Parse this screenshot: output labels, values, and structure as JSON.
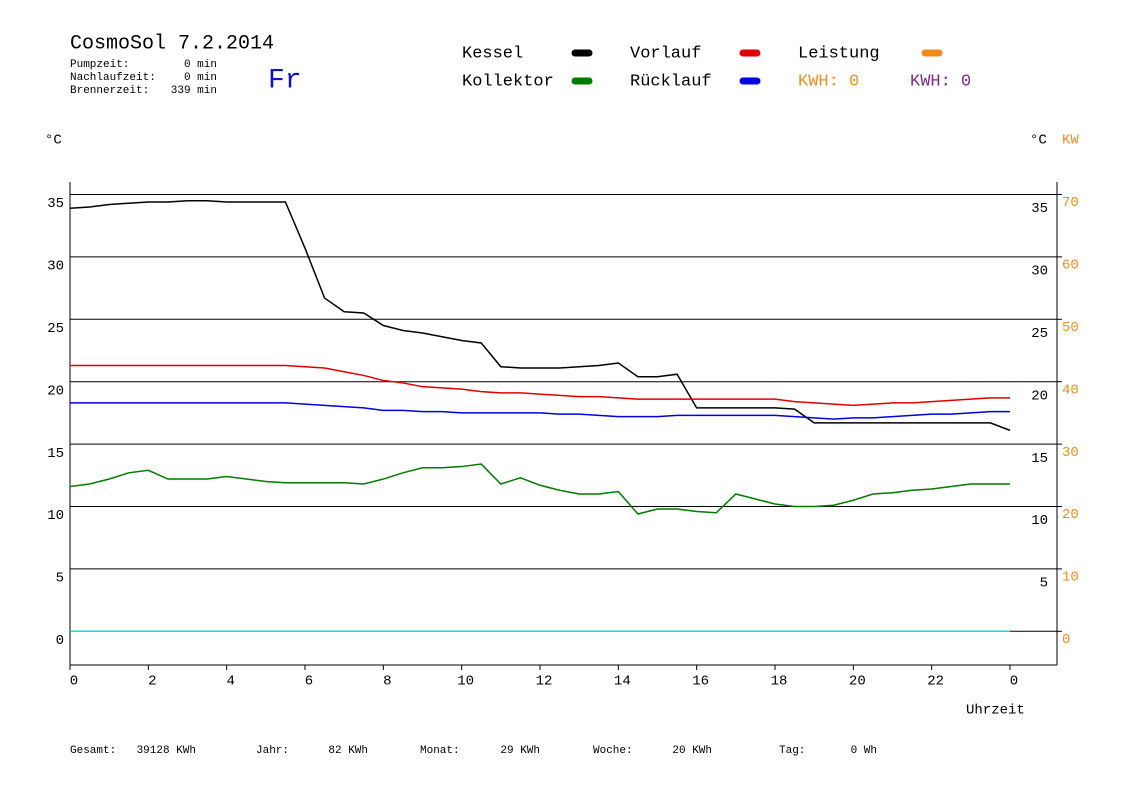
{
  "chart_data": {
    "type": "line",
    "title": "CosmoSol 7.2.2014",
    "day": "Fr",
    "info": [
      {
        "label": "Pumpzeit:",
        "value": "0 min"
      },
      {
        "label": "Nachlaufzeit:",
        "value": "0 min"
      },
      {
        "label": "Brennerzeit:",
        "value": "339 min"
      }
    ],
    "y_label": "°C",
    "y_right_label": "°C",
    "y2_label": "KW",
    "x_label": "Uhrzeit",
    "kwh_labels": [
      {
        "text": "KWH: 0",
        "color": "#e89020"
      },
      {
        "text": "KWH: 0",
        "color": "#7a2a8a"
      }
    ],
    "totals": [
      {
        "label": "Gesamt:",
        "value": "39128 KWh"
      },
      {
        "label": "Jahr:",
        "value": "82 KWh"
      },
      {
        "label": "Monat:",
        "value": "29 KWh"
      },
      {
        "label": "Woche:",
        "value": "20 KWh"
      },
      {
        "label": "Tag:",
        "value": "0 Wh"
      }
    ],
    "xlim": [
      0,
      25.2
    ],
    "xticks": [
      0,
      2,
      4,
      6,
      8,
      10,
      12,
      14,
      16,
      18,
      20,
      22,
      {
        "value": 24,
        "label": "0"
      }
    ],
    "ylim": [
      -2.7,
      36
    ],
    "yticks": [
      0,
      5,
      10,
      15,
      20,
      25,
      30,
      35
    ],
    "y2lim": [
      -5.4,
      72
    ],
    "y2ticks": [
      0,
      10,
      20,
      30,
      40,
      50,
      60,
      70
    ],
    "grid": true,
    "x": [
      0,
      0.5,
      1,
      1.5,
      2,
      2.5,
      3,
      3.5,
      4,
      4.5,
      5,
      5.5,
      6,
      6.5,
      7,
      7.5,
      8,
      8.5,
      9,
      9.5,
      10,
      10.5,
      11,
      11.5,
      12,
      12.5,
      13,
      13.5,
      14,
      14.5,
      15,
      15.5,
      16,
      16.5,
      17,
      17.5,
      18,
      18.5,
      19,
      19.5,
      20,
      20.5,
      21,
      21.5,
      22,
      22.5,
      23,
      23.5,
      24
    ],
    "series": [
      {
        "name": "Kessel",
        "color": "#000000",
        "values": [
          33.9,
          34.0,
          34.2,
          34.3,
          34.4,
          34.4,
          34.5,
          34.5,
          34.4,
          34.4,
          34.4,
          34.4,
          30.7,
          26.7,
          25.6,
          25.5,
          24.5,
          24.1,
          23.9,
          23.6,
          23.3,
          23.1,
          21.2,
          21.1,
          21.1,
          21.1,
          21.2,
          21.3,
          21.5,
          20.4,
          20.4,
          20.6,
          17.9,
          17.9,
          17.9,
          17.9,
          17.9,
          17.8,
          16.7,
          16.7,
          16.7,
          16.7,
          16.7,
          16.7,
          16.7,
          16.7,
          16.7,
          16.7,
          16.1
        ]
      },
      {
        "name": "Kollektor",
        "color": "#007a00",
        "values": [
          11.6,
          11.8,
          12.2,
          12.7,
          12.9,
          12.2,
          12.2,
          12.2,
          12.4,
          12.2,
          12.0,
          11.9,
          11.9,
          11.9,
          11.9,
          11.8,
          12.2,
          12.7,
          13.1,
          13.1,
          13.2,
          13.4,
          11.8,
          12.3,
          11.7,
          11.3,
          11.0,
          11.0,
          11.2,
          9.4,
          9.8,
          9.8,
          9.6,
          9.5,
          11.0,
          10.6,
          10.2,
          10.0,
          10.0,
          10.1,
          10.5,
          11.0,
          11.1,
          11.3,
          11.4,
          11.6,
          11.8,
          11.8,
          11.8
        ]
      },
      {
        "name": "Vorlauf",
        "color": "#e00000",
        "values": [
          21.3,
          21.3,
          21.3,
          21.3,
          21.3,
          21.3,
          21.3,
          21.3,
          21.3,
          21.3,
          21.3,
          21.3,
          21.2,
          21.1,
          20.8,
          20.5,
          20.1,
          19.9,
          19.6,
          19.5,
          19.4,
          19.2,
          19.1,
          19.1,
          19.0,
          18.9,
          18.8,
          18.8,
          18.7,
          18.6,
          18.6,
          18.6,
          18.6,
          18.6,
          18.6,
          18.6,
          18.6,
          18.4,
          18.3,
          18.2,
          18.1,
          18.2,
          18.3,
          18.3,
          18.4,
          18.5,
          18.6,
          18.7,
          18.7
        ]
      },
      {
        "name": "Rücklauf",
        "color": "#0000e0",
        "values": [
          18.3,
          18.3,
          18.3,
          18.3,
          18.3,
          18.3,
          18.3,
          18.3,
          18.3,
          18.3,
          18.3,
          18.3,
          18.2,
          18.1,
          18.0,
          17.9,
          17.7,
          17.7,
          17.6,
          17.6,
          17.5,
          17.5,
          17.5,
          17.5,
          17.5,
          17.4,
          17.4,
          17.3,
          17.2,
          17.2,
          17.2,
          17.3,
          17.3,
          17.3,
          17.3,
          17.3,
          17.3,
          17.2,
          17.1,
          17.0,
          17.1,
          17.1,
          17.2,
          17.3,
          17.4,
          17.4,
          17.5,
          17.6,
          17.6
        ]
      },
      {
        "name": "Leistung",
        "color": "#f08c1e",
        "axis": "y2",
        "values": [
          0,
          0,
          0,
          0,
          0,
          0,
          0,
          0,
          0,
          0,
          0,
          0,
          0,
          0,
          0,
          0,
          0,
          0,
          0,
          0,
          0,
          0,
          0,
          0,
          0,
          0,
          0,
          0,
          0,
          0,
          0,
          0,
          0,
          0,
          0,
          0,
          0,
          0,
          0,
          0,
          0,
          0,
          0,
          0,
          0,
          0,
          0,
          0,
          0
        ]
      },
      {
        "color": "#00e0e0",
        "values": [
          0,
          0,
          0,
          0,
          0,
          0,
          0,
          0,
          0,
          0,
          0,
          0,
          0,
          0,
          0,
          0,
          0,
          0,
          0,
          0,
          0,
          0,
          0,
          0,
          0,
          0,
          0,
          0,
          0,
          0,
          0,
          0,
          0,
          0,
          0,
          0,
          0,
          0,
          0,
          0,
          0,
          0,
          0,
          0,
          0,
          0,
          0,
          0,
          0
        ]
      }
    ]
  }
}
